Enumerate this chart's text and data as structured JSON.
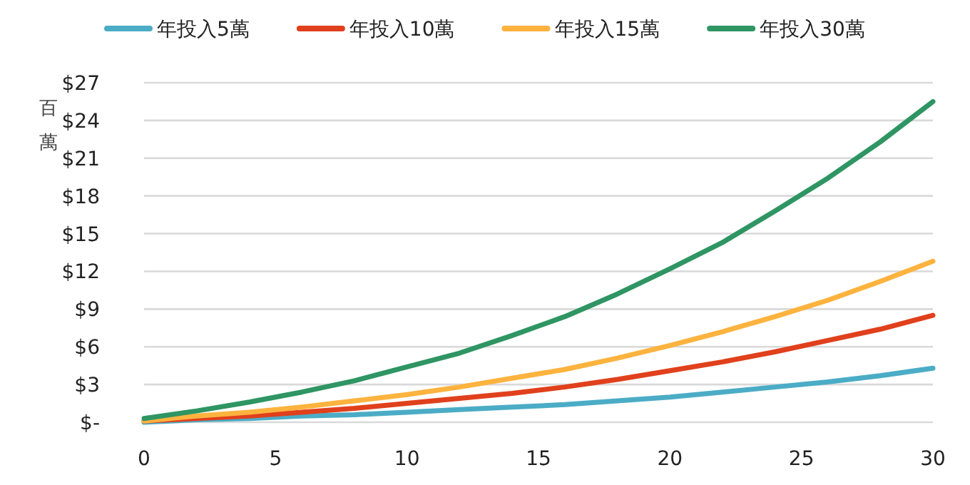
{
  "chart_data": {
    "type": "line",
    "ylabel": "百萬",
    "legend": "top",
    "grid": "y",
    "line_style": "solid",
    "marker": "none",
    "x": [
      0,
      2,
      4,
      6,
      8,
      10,
      12,
      14,
      16,
      18,
      20,
      22,
      24,
      26,
      28,
      30
    ],
    "xlim": [
      0,
      30
    ],
    "xticks": [
      0,
      5,
      10,
      15,
      20,
      25,
      30
    ],
    "ylim": [
      0,
      27
    ],
    "yticks": [
      {
        "value": 0,
        "label": "$-"
      },
      {
        "value": 3,
        "label": "$3"
      },
      {
        "value": 6,
        "label": "$6"
      },
      {
        "value": 9,
        "label": "$9"
      },
      {
        "value": 12,
        "label": "$12"
      },
      {
        "value": 15,
        "label": "$15"
      },
      {
        "value": 18,
        "label": "$18"
      },
      {
        "value": 21,
        "label": "$21"
      },
      {
        "value": 24,
        "label": "$24"
      },
      {
        "value": 27,
        "label": "$27"
      }
    ],
    "series": [
      {
        "name": "年投入5萬",
        "color": "#4bacc6",
        "values": [
          0,
          0.2,
          0.3,
          0.5,
          0.6,
          0.8,
          1.0,
          1.2,
          1.4,
          1.7,
          2.0,
          2.4,
          2.8,
          3.2,
          3.7,
          4.3
        ]
      },
      {
        "name": "年投入10萬",
        "color": "#e0401c",
        "values": [
          0.1,
          0.3,
          0.5,
          0.8,
          1.1,
          1.5,
          1.9,
          2.3,
          2.8,
          3.4,
          4.1,
          4.8,
          5.6,
          6.5,
          7.4,
          8.5
        ]
      },
      {
        "name": "年投入15萬",
        "color": "#fdb33e",
        "values": [
          0.1,
          0.5,
          0.8,
          1.2,
          1.7,
          2.2,
          2.8,
          3.5,
          4.2,
          5.1,
          6.1,
          7.2,
          8.4,
          9.7,
          11.2,
          12.8
        ]
      },
      {
        "name": "年投入30萬",
        "color": "#2e9563",
        "values": [
          0.3,
          0.9,
          1.6,
          2.4,
          3.3,
          4.4,
          5.5,
          6.9,
          8.4,
          10.2,
          12.2,
          14.3,
          16.8,
          19.4,
          22.3,
          25.5
        ]
      }
    ]
  }
}
